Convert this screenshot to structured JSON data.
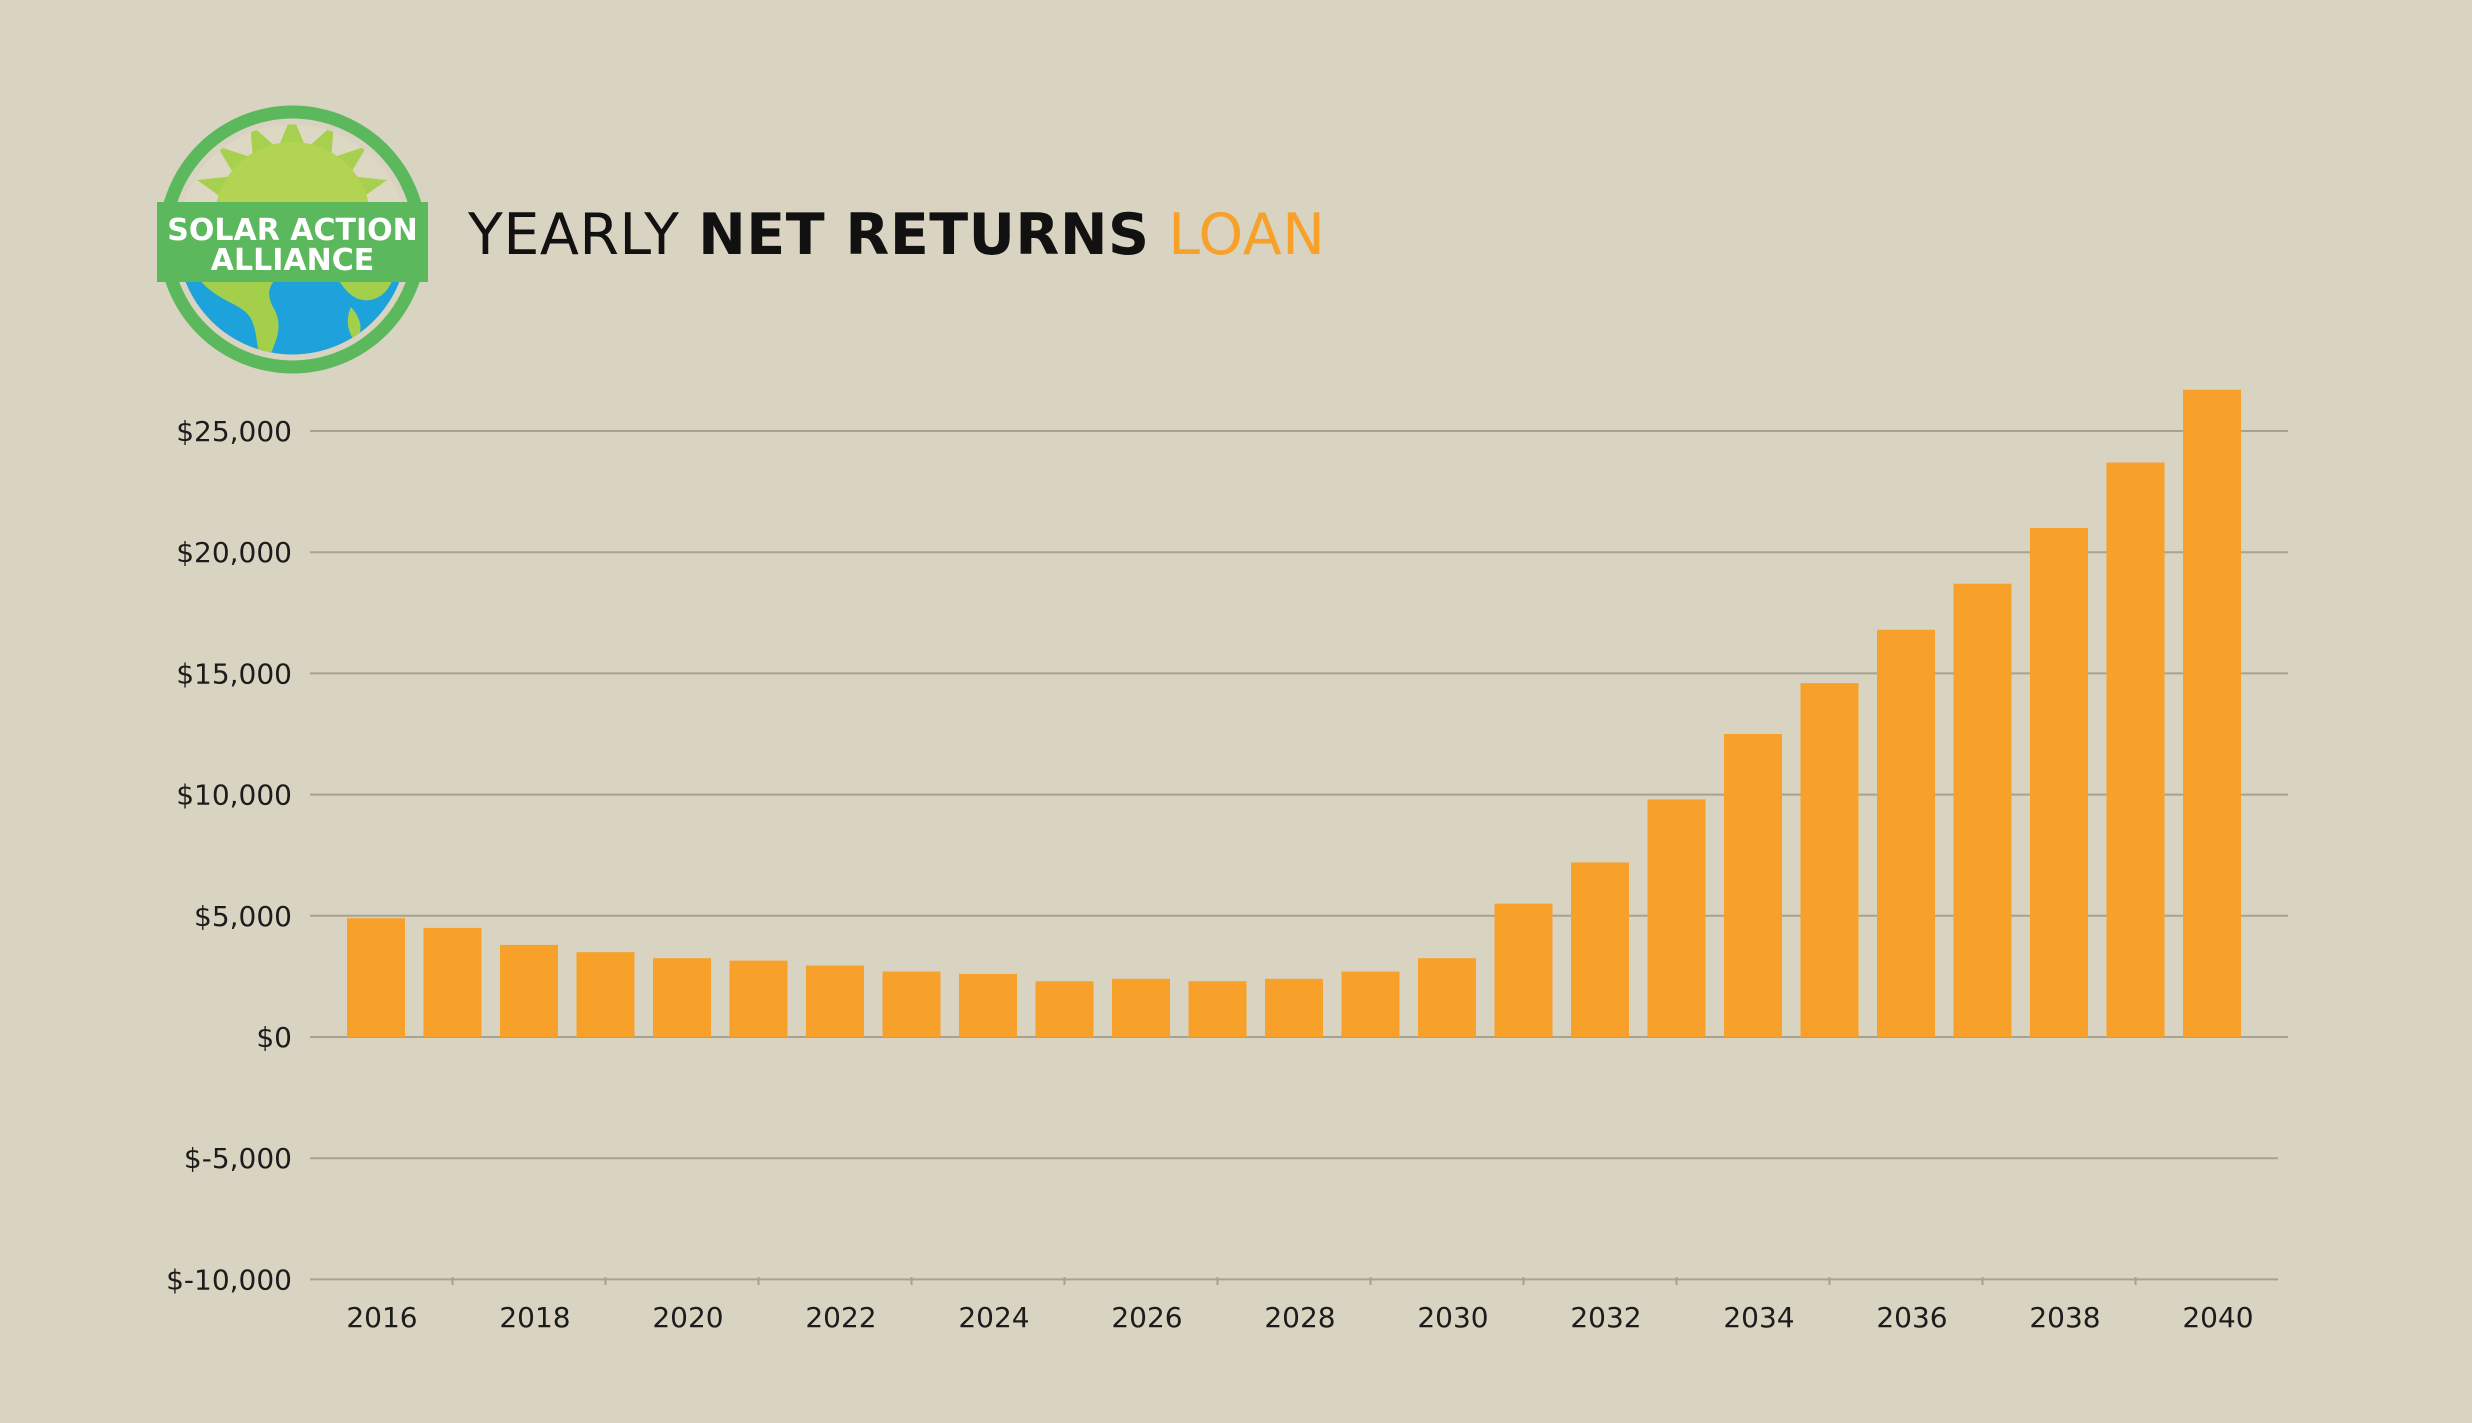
{
  "title": {
    "part1": "YEARLY",
    "part2": "NET RETURNS",
    "part3": "LOAN"
  },
  "logo": {
    "line1": "SOLAR ACTION",
    "line2": "ALLIANCE"
  },
  "colors": {
    "background": "#d9d3c1",
    "bar": "#f7a12a",
    "accent": "#f7a12a",
    "grid": "#a8a290"
  },
  "chart_data": {
    "type": "bar",
    "categories": [
      "2016",
      "2017",
      "2018",
      "2019",
      "2020",
      "2021",
      "2022",
      "2023",
      "2024",
      "2025",
      "2026",
      "2027",
      "2028",
      "2029",
      "2030",
      "2031",
      "2032",
      "2033",
      "2034",
      "2035",
      "2036",
      "2037",
      "2038",
      "2039",
      "2040"
    ],
    "x_tick_labels": [
      "2016",
      "2018",
      "2020",
      "2022",
      "2024",
      "2026",
      "2028",
      "2030",
      "2032",
      "2034",
      "2036",
      "2038",
      "2040"
    ],
    "values": [
      4900,
      4500,
      3800,
      3500,
      3250,
      3150,
      2950,
      2700,
      2600,
      2300,
      2400,
      2300,
      2400,
      2700,
      3250,
      5500,
      7200,
      9800,
      12500,
      14600,
      16800,
      18700,
      21000,
      23700,
      26700
    ],
    "y_ticks": [
      25000,
      20000,
      15000,
      10000,
      5000,
      0,
      -5000,
      -10000
    ],
    "y_tick_labels": [
      "$25,000",
      "$20,000",
      "$15,000",
      "$10,000",
      "$5,000",
      "$0",
      "$-5,000",
      "$-10,000"
    ],
    "ylim": [
      -10000,
      25000
    ],
    "grid": true,
    "legend": "none"
  }
}
